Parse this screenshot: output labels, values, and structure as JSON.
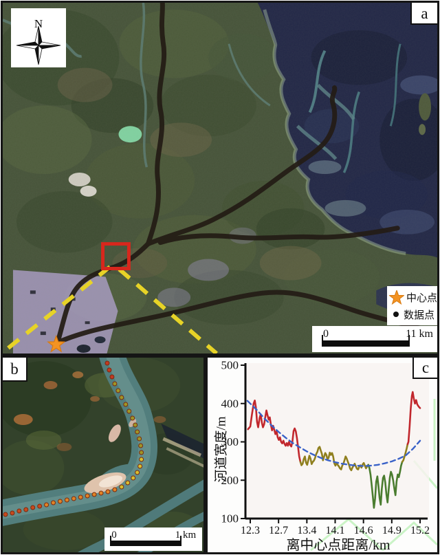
{
  "figure": {
    "panel_a": {
      "label": "a",
      "north_label": "N",
      "legend": {
        "items": [
          {
            "icon": "center-point-star-icon",
            "label": "中心点",
            "color": "#f39323"
          },
          {
            "icon": "data-point-dot-icon",
            "label": "数据点",
            "color": "#111111"
          }
        ]
      },
      "scale_bar": {
        "start": "0",
        "end": "11 km"
      },
      "annotations": {
        "study_area_box_color": "#d8271d",
        "section_line_color": "#e7d327",
        "channel_trace_color": "#231c15"
      }
    },
    "panel_b": {
      "label": "b",
      "scale_bar": {
        "start": "0",
        "end": "1 km"
      }
    },
    "panel_c": {
      "label": "c"
    }
  },
  "chart_data": {
    "type": "line",
    "title": "",
    "xlabel": "离中心点距离/km",
    "ylabel": "河道宽度/m",
    "x_tick_labels": [
      "12.3",
      "12.7",
      "13.4",
      "14.1",
      "14.6",
      "14.9",
      "15.2"
    ],
    "y_ticks": [
      500,
      400,
      300,
      200,
      100
    ],
    "ylim": [
      100,
      500
    ],
    "grid": false,
    "legend_position": "none",
    "series": [
      {
        "name": "channel-width-red-upstream",
        "color": "#c1272d",
        "points": [
          [
            -0.08,
            333
          ],
          [
            0.0,
            340
          ],
          [
            0.06,
            372
          ],
          [
            0.12,
            400
          ],
          [
            0.16,
            408
          ],
          [
            0.2,
            390
          ],
          [
            0.24,
            352
          ],
          [
            0.28,
            338
          ],
          [
            0.33,
            362
          ],
          [
            0.37,
            372
          ],
          [
            0.41,
            350
          ],
          [
            0.45,
            338
          ],
          [
            0.49,
            346
          ],
          [
            0.53,
            364
          ],
          [
            0.57,
            382
          ],
          [
            0.61,
            370
          ],
          [
            0.65,
            358
          ],
          [
            0.69,
            364
          ],
          [
            0.73,
            344
          ],
          [
            0.77,
            330
          ],
          [
            0.81,
            342
          ],
          [
            0.85,
            331
          ],
          [
            0.89,
            320
          ],
          [
            0.93,
            328
          ],
          [
            0.97,
            312
          ],
          [
            1.01,
            305
          ],
          [
            1.05,
            312
          ],
          [
            1.09,
            300
          ],
          [
            1.13,
            296
          ],
          [
            1.17,
            303
          ],
          [
            1.21,
            295
          ],
          [
            1.25,
            290
          ],
          [
            1.29,
            297
          ],
          [
            1.33,
            290
          ],
          [
            1.37,
            300
          ],
          [
            1.41,
            292
          ],
          [
            1.45,
            288
          ],
          [
            1.49,
            300
          ],
          [
            1.53,
            328
          ],
          [
            1.57,
            335
          ],
          [
            1.61,
            327
          ],
          [
            1.65,
            310
          ],
          [
            1.69,
            286
          ],
          [
            1.73,
            262
          ],
          [
            1.77,
            248
          ]
        ]
      },
      {
        "name": "channel-width-olive-middle",
        "color": "#8f7f1e",
        "points": [
          [
            1.81,
            239
          ],
          [
            1.85,
            243
          ],
          [
            1.89,
            255
          ],
          [
            1.93,
            262
          ],
          [
            1.97,
            246
          ],
          [
            2.01,
            240
          ],
          [
            2.05,
            252
          ],
          [
            2.09,
            264
          ],
          [
            2.13,
            256
          ],
          [
            2.17,
            242
          ],
          [
            2.21,
            248
          ],
          [
            2.25,
            251
          ],
          [
            2.29,
            258
          ],
          [
            2.33,
            268
          ],
          [
            2.37,
            274
          ],
          [
            2.41,
            284
          ],
          [
            2.45,
            287
          ],
          [
            2.49,
            278
          ],
          [
            2.53,
            269
          ],
          [
            2.57,
            252
          ],
          [
            2.61,
            262
          ],
          [
            2.65,
            271
          ],
          [
            2.69,
            266
          ],
          [
            2.73,
            254
          ],
          [
            2.77,
            259
          ],
          [
            2.81,
            272
          ],
          [
            2.85,
            266
          ],
          [
            2.89,
            271
          ],
          [
            2.93,
            262
          ],
          [
            2.97,
            244
          ],
          [
            3.01,
            238
          ],
          [
            3.05,
            245
          ],
          [
            3.09,
            240
          ],
          [
            3.13,
            236
          ],
          [
            3.17,
            231
          ],
          [
            3.21,
            228
          ],
          [
            3.25,
            238
          ],
          [
            3.29,
            243
          ],
          [
            3.33,
            252
          ],
          [
            3.37,
            262
          ],
          [
            3.41,
            256
          ],
          [
            3.45,
            248
          ],
          [
            3.49,
            240
          ],
          [
            3.53,
            230
          ],
          [
            3.57,
            226
          ],
          [
            3.61,
            233
          ],
          [
            3.65,
            238
          ],
          [
            3.69,
            243
          ],
          [
            3.73,
            236
          ],
          [
            3.77,
            230
          ],
          [
            3.81,
            228
          ],
          [
            3.85,
            235
          ],
          [
            3.89,
            239
          ],
          [
            3.93,
            233
          ],
          [
            3.97,
            241
          ],
          [
            4.01,
            245
          ],
          [
            4.05,
            238
          ],
          [
            4.09,
            231
          ],
          [
            4.13,
            236
          ],
          [
            4.17,
            240
          ]
        ]
      },
      {
        "name": "channel-width-green-narrow",
        "color": "#4a7c2f",
        "points": [
          [
            4.21,
            232
          ],
          [
            4.25,
            214
          ],
          [
            4.29,
            188
          ],
          [
            4.33,
            158
          ],
          [
            4.37,
            128
          ],
          [
            4.41,
            152
          ],
          [
            4.45,
            196
          ],
          [
            4.49,
            210
          ],
          [
            4.53,
            184
          ],
          [
            4.57,
            154
          ],
          [
            4.61,
            136
          ],
          [
            4.65,
            178
          ],
          [
            4.69,
            206
          ],
          [
            4.73,
            212
          ],
          [
            4.77,
            194
          ],
          [
            4.81,
            164
          ],
          [
            4.85,
            142
          ],
          [
            4.89,
            174
          ],
          [
            4.93,
            206
          ],
          [
            4.97,
            222
          ],
          [
            5.01,
            214
          ],
          [
            5.05,
            199
          ],
          [
            5.09,
            178
          ],
          [
            5.13,
            161
          ],
          [
            5.17,
            196
          ],
          [
            5.21,
            215
          ],
          [
            5.25,
            208
          ],
          [
            5.29,
            222
          ],
          [
            5.33,
            238
          ],
          [
            5.37,
            248
          ]
        ]
      },
      {
        "name": "channel-width-olive-rise",
        "color": "#8f7f1e",
        "points": [
          [
            5.41,
            252
          ],
          [
            5.45,
            262
          ],
          [
            5.49,
            272
          ],
          [
            5.53,
            284
          ],
          [
            5.56,
            294
          ]
        ]
      },
      {
        "name": "channel-width-red-downstream",
        "color": "#c1272d",
        "points": [
          [
            5.59,
            300
          ],
          [
            5.63,
            340
          ],
          [
            5.67,
            386
          ],
          [
            5.71,
            420
          ],
          [
            5.74,
            430
          ],
          [
            5.78,
            412
          ],
          [
            5.82,
            400
          ],
          [
            5.86,
            409
          ],
          [
            5.9,
            398
          ],
          [
            5.95,
            392
          ],
          [
            6.0,
            388
          ]
        ]
      },
      {
        "name": "trend-curve",
        "color": "#3a62c8",
        "dashed": true,
        "points": [
          [
            -0.1,
            407
          ],
          [
            0.25,
            382
          ],
          [
            0.5,
            361
          ],
          [
            0.75,
            343
          ],
          [
            1,
            326
          ],
          [
            1.25,
            311
          ],
          [
            1.5,
            297
          ],
          [
            1.75,
            286
          ],
          [
            2,
            275
          ],
          [
            2.25,
            266
          ],
          [
            2.5,
            258
          ],
          [
            2.75,
            252
          ],
          [
            3,
            247
          ],
          [
            3.25,
            243
          ],
          [
            3.5,
            240
          ],
          [
            3.75,
            238
          ],
          [
            4,
            237
          ],
          [
            4.25,
            238
          ],
          [
            4.5,
            240
          ],
          [
            4.75,
            244
          ],
          [
            5,
            249
          ],
          [
            5.25,
            256
          ],
          [
            5.5,
            265
          ],
          [
            5.75,
            282
          ],
          [
            6,
            303
          ]
        ]
      }
    ]
  }
}
